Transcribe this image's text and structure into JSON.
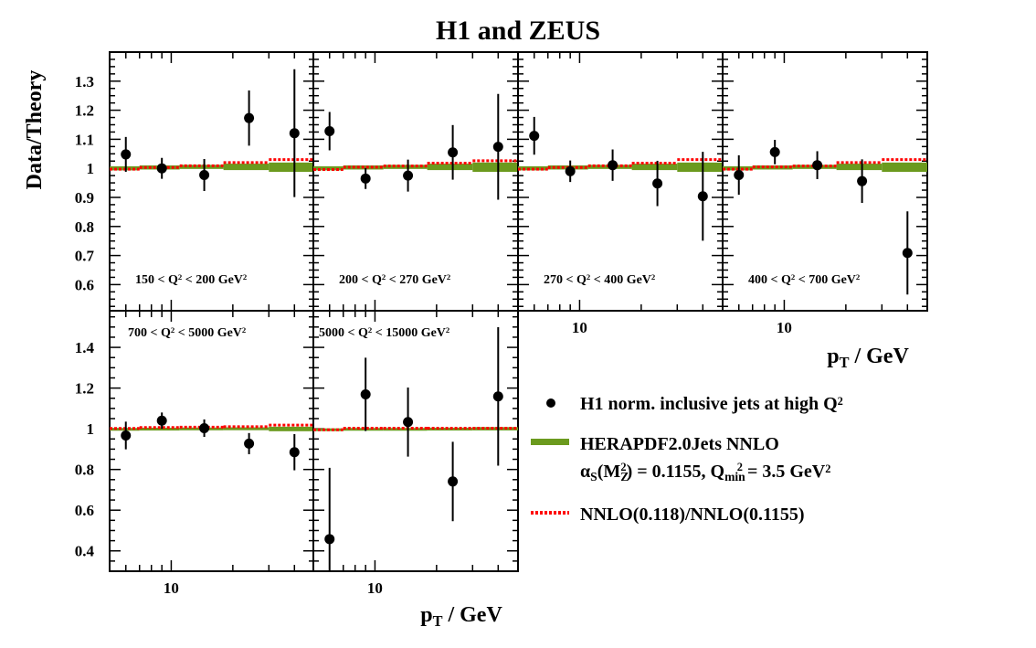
{
  "chart_data": {
    "type": "scatter",
    "title": "H1 and ZEUS",
    "ylabel": "Data/Theory",
    "xlabel": [
      {
        "t": "p"
      },
      {
        "t": "T",
        "s": "sub"
      },
      {
        "t": " / GeV"
      }
    ],
    "x_scale": "log",
    "xlim": [
      5,
      50
    ],
    "x_bin_edges": [
      5,
      7,
      11,
      18,
      30,
      50
    ],
    "x": [
      6,
      9,
      14.5,
      24,
      40
    ],
    "x_tick_label": "10",
    "colors": {
      "data": "#000000",
      "band": "#6b9a1e",
      "ratio": "#ff0000"
    },
    "rows": [
      {
        "ylim": [
          0.51,
          1.4
        ],
        "yticks": [
          0.6,
          0.7,
          0.8,
          0.9,
          1,
          1.1,
          1.2,
          1.3
        ],
        "ytick_labels": [
          "0.6",
          "0.7",
          "0.8",
          "0.9",
          "1",
          "1.1",
          "1.2",
          "1.3"
        ]
      },
      {
        "ylim": [
          0.3,
          1.58
        ],
        "yticks": [
          0.4,
          0.6,
          0.8,
          1,
          1.2,
          1.4
        ],
        "ytick_labels": [
          "0.4",
          "0.6",
          "0.8",
          "1",
          "1.2",
          "1.4"
        ]
      }
    ],
    "panels": [
      {
        "row": 0,
        "label": [
          {
            "t": "150 < Q"
          },
          {
            "t": "2",
            "s": "sup"
          },
          {
            "t": " < 200 GeV"
          },
          {
            "t": "2",
            "s": "sup"
          }
        ],
        "y": [
          1.048,
          1.0,
          0.977,
          1.173,
          1.121
        ],
        "yerr": [
          0.06,
          0.036,
          0.055,
          0.095,
          0.22
        ],
        "band": [
          1.0,
          1.003,
          1.005,
          1.005,
          1.004
        ],
        "band_err": [
          0.007,
          0.007,
          0.007,
          0.011,
          0.016
        ],
        "ratio": [
          0.997,
          1.003,
          1.009,
          1.02,
          1.03
        ]
      },
      {
        "row": 0,
        "label": [
          {
            "t": "200 < Q"
          },
          {
            "t": "2",
            "s": "sup"
          },
          {
            "t": " < 270 GeV"
          },
          {
            "t": "2",
            "s": "sup"
          }
        ],
        "y": [
          1.128,
          0.965,
          0.975,
          1.055,
          1.074
        ],
        "yerr": [
          0.066,
          0.036,
          0.055,
          0.094,
          0.182
        ],
        "band": [
          1.0,
          1.003,
          1.005,
          1.005,
          1.004
        ],
        "band_err": [
          0.007,
          0.007,
          0.007,
          0.011,
          0.016
        ],
        "ratio": [
          0.996,
          1.004,
          1.008,
          1.018,
          1.026
        ]
      },
      {
        "row": 0,
        "label": [
          {
            "t": "270 < Q"
          },
          {
            "t": "2",
            "s": "sup"
          },
          {
            "t": " < 400 GeV"
          },
          {
            "t": "2",
            "s": "sup"
          }
        ],
        "y": [
          1.112,
          0.99,
          1.011,
          0.948,
          0.904
        ],
        "yerr": [
          0.065,
          0.037,
          0.054,
          0.078,
          0.153
        ],
        "band": [
          1.0,
          1.003,
          1.005,
          1.005,
          1.004
        ],
        "band_err": [
          0.007,
          0.007,
          0.007,
          0.011,
          0.016
        ],
        "ratio": [
          0.997,
          1.003,
          1.009,
          1.018,
          1.03
        ]
      },
      {
        "row": 0,
        "label": [
          {
            "t": "400 < Q"
          },
          {
            "t": "2",
            "s": "sup"
          },
          {
            "t": " < 700 GeV"
          },
          {
            "t": "2",
            "s": "sup"
          }
        ],
        "y": [
          0.977,
          1.056,
          1.011,
          0.956,
          0.709
        ],
        "yerr": [
          0.068,
          0.042,
          0.048,
          0.075,
          0.143
        ],
        "band": [
          1.0,
          1.003,
          1.005,
          1.005,
          1.004
        ],
        "band_err": [
          0.007,
          0.007,
          0.007,
          0.011,
          0.016
        ],
        "ratio": [
          0.997,
          1.005,
          1.008,
          1.02,
          1.03
        ]
      },
      {
        "row": 1,
        "label": [
          {
            "t": "700 < Q"
          },
          {
            "t": "2",
            "s": "sup"
          },
          {
            "t": " < 5000 GeV"
          },
          {
            "t": "2",
            "s": "sup"
          }
        ],
        "y": [
          0.967,
          1.04,
          1.003,
          0.927,
          0.885
        ],
        "yerr": [
          0.068,
          0.04,
          0.043,
          0.052,
          0.089
        ],
        "band": [
          1.0,
          1.0,
          1.001,
          1.0,
          0.999
        ],
        "band_err": [
          0.004,
          0.005,
          0.005,
          0.007,
          0.011
        ],
        "ratio": [
          1.002,
          1.006,
          1.008,
          1.01,
          1.018
        ]
      },
      {
        "row": 1,
        "label": [
          {
            "t": "5000 < Q"
          },
          {
            "t": "2",
            "s": "sup"
          },
          {
            "t": " < 15000 GeV"
          },
          {
            "t": "2",
            "s": "sup"
          }
        ],
        "y": [
          0.458,
          1.169,
          1.033,
          0.741,
          1.159
        ],
        "yerr": [
          0.35,
          0.18,
          0.17,
          0.195,
          0.34
        ],
        "band": [
          0.999,
          1.0,
          1.0,
          1.0,
          1.0
        ],
        "band_err": [
          0.003,
          0.004,
          0.004,
          0.005,
          0.008
        ],
        "ratio": [
          0.995,
          1.003,
          1.003,
          1.003,
          1.003
        ]
      }
    ],
    "legend": {
      "placement": "right",
      "entries": [
        {
          "marker": "point",
          "lines": [
            [
              {
                "t": "H1 norm. inclusive jets at high Q"
              },
              {
                "t": "2",
                "s": "sup"
              }
            ]
          ]
        },
        {
          "marker": "band",
          "lines": [
            [
              {
                "t": "HERAPDF2.0Jets NNLO"
              }
            ],
            [
              {
                "t": "α"
              },
              {
                "t": "S",
                "s": "sub"
              },
              {
                "t": "(M"
              },
              {
                "t": "Z",
                "s": "sub"
              },
              {
                "t": "2",
                "s": "supx"
              },
              {
                "t": ") = 0.1155, Q"
              },
              {
                "t": "min",
                "s": "sub"
              },
              {
                "t": "2",
                "s": "supx"
              },
              {
                "t": " = 3.5 GeV"
              },
              {
                "t": "2",
                "s": "sup"
              }
            ]
          ]
        },
        {
          "marker": "dotted",
          "lines": [
            [
              {
                "t": "NNLO(0.118)/NNLO(0.1155)"
              }
            ]
          ]
        }
      ]
    }
  }
}
